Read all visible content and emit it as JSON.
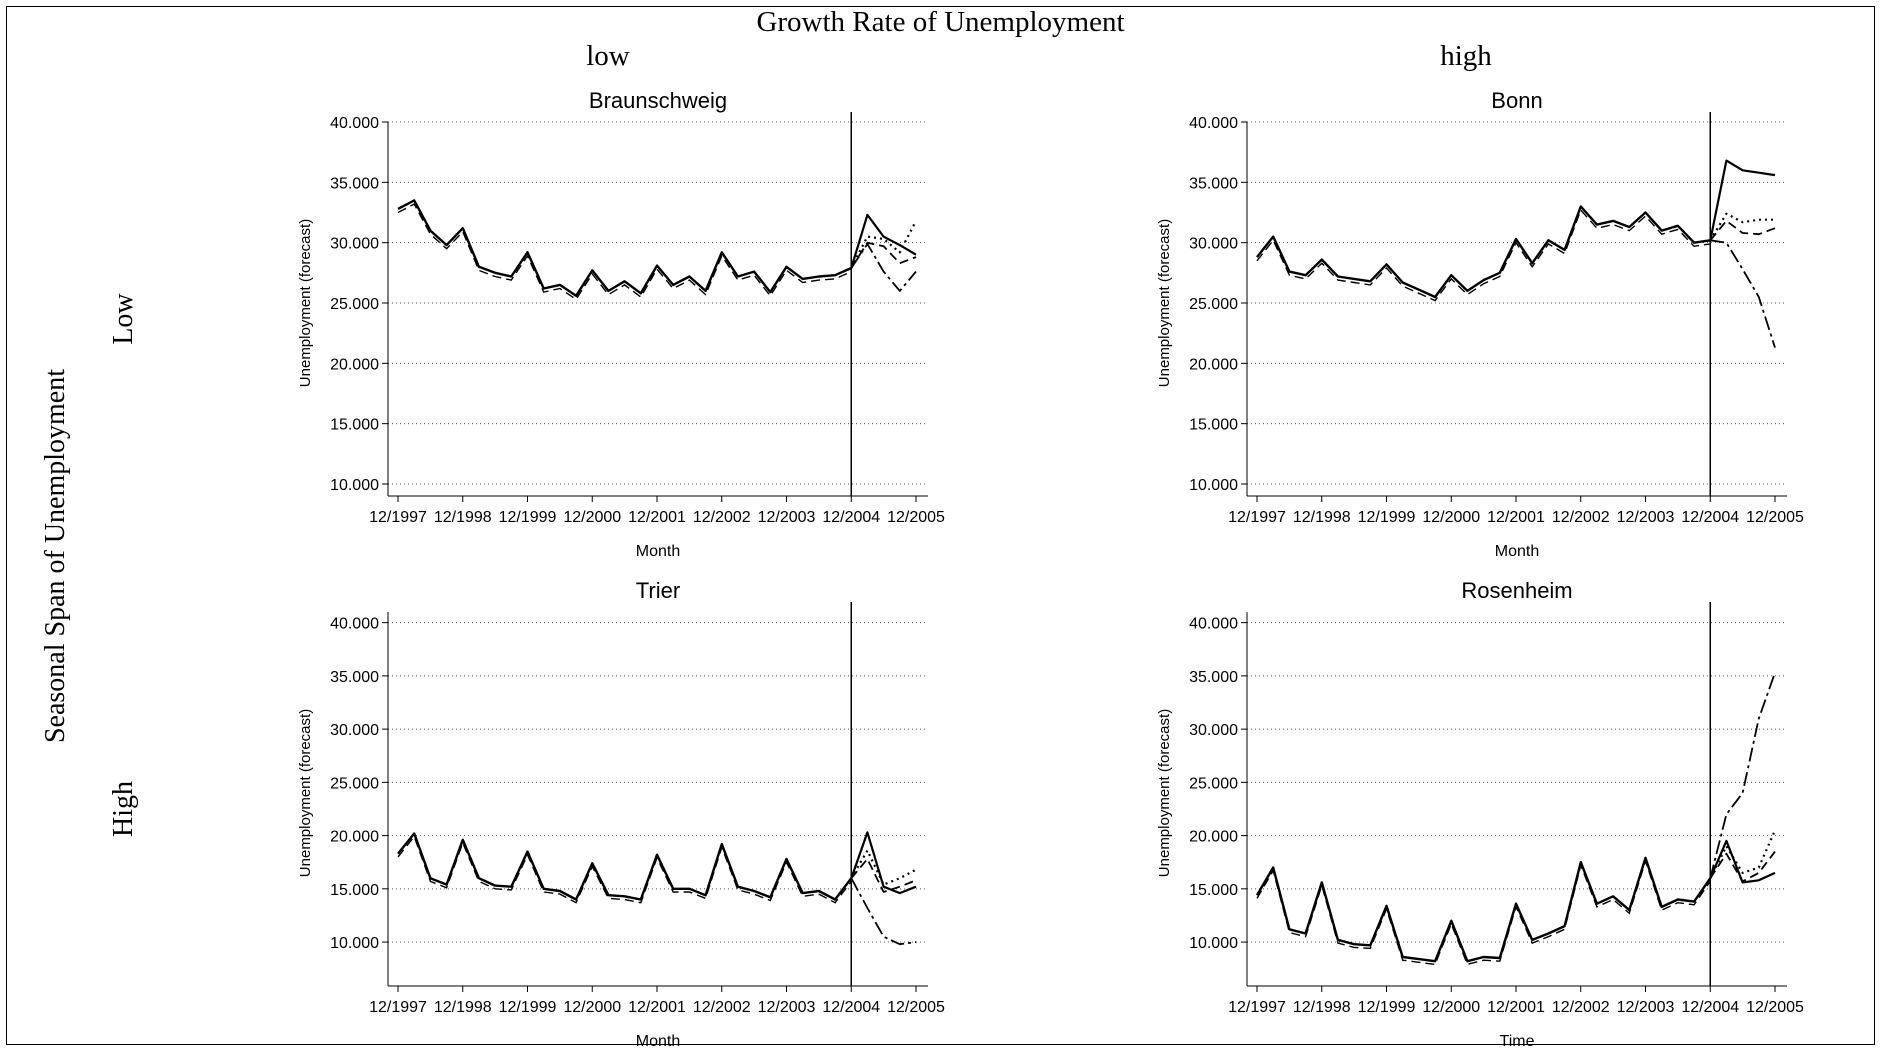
{
  "figure": {
    "title": "Growth Rate of Unemployment",
    "col_low": "low",
    "col_high": "high",
    "row_axis_title": "Seasonal Span of Unemployment",
    "row_low": "Low",
    "row_high": "High"
  },
  "chart_data": [
    {
      "type": "line",
      "title": "Braunschweig",
      "xlabel": "Month",
      "ylabel": "Unemployment (forecast)",
      "xticks": [
        "12/1997",
        "12/1998",
        "12/1999",
        "12/2000",
        "12/2001",
        "12/2002",
        "12/2003",
        "12/2004",
        "12/2005"
      ],
      "yticks": [
        "10.000",
        "15.000",
        "20.000",
        "25.000",
        "30.000",
        "35.000",
        "40.000"
      ],
      "ylim": [
        10000,
        40000
      ],
      "grid": true,
      "forecast_start": "12/2004",
      "history": {
        "months": [
          "12/1997",
          "03/1998",
          "06/1998",
          "09/1998",
          "12/1998",
          "03/1999",
          "06/1999",
          "09/1999",
          "12/1999",
          "03/2000",
          "06/2000",
          "09/2000",
          "12/2000",
          "03/2001",
          "06/2001",
          "09/2001",
          "12/2001",
          "03/2002",
          "06/2002",
          "09/2002",
          "12/2002",
          "03/2003",
          "06/2003",
          "09/2003",
          "12/2003",
          "03/2004",
          "06/2004",
          "09/2004",
          "12/2004"
        ],
        "values": [
          32800,
          33500,
          31000,
          29800,
          31200,
          28000,
          27500,
          27200,
          29200,
          26200,
          26500,
          25600,
          27700,
          26000,
          26800,
          25800,
          28100,
          26500,
          27200,
          26000,
          29200,
          27200,
          27600,
          25900,
          28000,
          27000,
          27200,
          27300,
          27900
        ]
      },
      "forecasts": {
        "months": [
          "12/2004",
          "03/2005",
          "06/2005",
          "09/2005",
          "12/2005"
        ],
        "series": [
          {
            "style": "solid",
            "values": [
              27900,
              32300,
              30500,
              29800,
              29000
            ]
          },
          {
            "style": "dotted",
            "values": [
              27900,
              30500,
              30300,
              29200,
              31800
            ]
          },
          {
            "style": "dashed",
            "values": [
              27900,
              30000,
              29700,
              28300,
              28800
            ]
          },
          {
            "style": "dashdot",
            "values": [
              27900,
              29900,
              27600,
              26000,
              27600
            ]
          }
        ]
      }
    },
    {
      "type": "line",
      "title": "Bonn",
      "xlabel": "Month",
      "ylabel": "Unemployment (forecast)",
      "xticks": [
        "12/1997",
        "12/1998",
        "12/1999",
        "12/2000",
        "12/2001",
        "12/2002",
        "12/2003",
        "12/2004",
        "12/2005"
      ],
      "yticks": [
        "10.000",
        "15.000",
        "20.000",
        "25.000",
        "30.000",
        "35.000",
        "40.000"
      ],
      "ylim": [
        10000,
        40000
      ],
      "grid": true,
      "forecast_start": "12/2004",
      "history": {
        "months": [
          "12/1997",
          "03/1998",
          "06/1998",
          "09/1998",
          "12/1998",
          "03/1999",
          "06/1999",
          "09/1999",
          "12/1999",
          "03/2000",
          "06/2000",
          "09/2000",
          "12/2000",
          "03/2001",
          "06/2001",
          "09/2001",
          "12/2001",
          "03/2002",
          "06/2002",
          "09/2002",
          "12/2002",
          "03/2003",
          "06/2003",
          "09/2003",
          "12/2003",
          "03/2004",
          "06/2004",
          "09/2004",
          "12/2004"
        ],
        "values": [
          28800,
          30500,
          27600,
          27300,
          28600,
          27200,
          27000,
          26800,
          28200,
          26700,
          26100,
          25500,
          27300,
          26000,
          26900,
          27500,
          30300,
          28300,
          30200,
          29400,
          33000,
          31500,
          31800,
          31300,
          32500,
          31000,
          31400,
          30000,
          30200
        ]
      },
      "forecasts": {
        "months": [
          "12/2004",
          "03/2005",
          "06/2005",
          "09/2005",
          "12/2005"
        ],
        "series": [
          {
            "style": "solid",
            "values": [
              30200,
              36800,
              36000,
              35800,
              35600
            ]
          },
          {
            "style": "dotted",
            "values": [
              30200,
              32400,
              31700,
              31900,
              31900
            ]
          },
          {
            "style": "dashed",
            "values": [
              30200,
              31800,
              30800,
              30700,
              31200
            ]
          },
          {
            "style": "dashdot",
            "values": [
              30200,
              30000,
              27800,
              25500,
              21300
            ]
          }
        ]
      }
    },
    {
      "type": "line",
      "title": "Trier",
      "xlabel": "Month",
      "ylabel": "Unemployment (forecast)",
      "xticks": [
        "12/1997",
        "12/1998",
        "12/1999",
        "12/2000",
        "12/2001",
        "12/2002",
        "12/2003",
        "12/2004",
        "12/2005"
      ],
      "yticks": [
        "10.000",
        "15.000",
        "20.000",
        "25.000",
        "30.000",
        "35.000",
        "40.000"
      ],
      "ylim": [
        7000,
        41000
      ],
      "grid": true,
      "forecast_start": "12/2004",
      "history": {
        "months": [
          "12/1997",
          "03/1998",
          "06/1998",
          "09/1998",
          "12/1998",
          "03/1999",
          "06/1999",
          "09/1999",
          "12/1999",
          "03/2000",
          "06/2000",
          "09/2000",
          "12/2000",
          "03/2001",
          "06/2001",
          "09/2001",
          "12/2001",
          "03/2002",
          "06/2002",
          "09/2002",
          "12/2002",
          "03/2003",
          "06/2003",
          "09/2003",
          "12/2003",
          "03/2004",
          "06/2004",
          "09/2004",
          "12/2004"
        ],
        "values": [
          18300,
          20200,
          16000,
          15400,
          19600,
          16000,
          15300,
          15200,
          18500,
          15000,
          14800,
          14000,
          17400,
          14400,
          14300,
          14000,
          18200,
          15000,
          15000,
          14400,
          19200,
          15200,
          14800,
          14200,
          17800,
          14600,
          14800,
          14000,
          16000
        ]
      },
      "forecasts": {
        "months": [
          "12/2004",
          "03/2005",
          "06/2005",
          "09/2005",
          "12/2005"
        ],
        "series": [
          {
            "style": "solid",
            "values": [
              16000,
              20300,
              15200,
              14600,
              15200
            ]
          },
          {
            "style": "dotted",
            "values": [
              16000,
              18600,
              15400,
              16000,
              16800
            ]
          },
          {
            "style": "dashed",
            "values": [
              16000,
              17800,
              14700,
              15200,
              15800
            ]
          },
          {
            "style": "dashdot",
            "values": [
              16000,
              13200,
              10500,
              9800,
              10000
            ]
          }
        ]
      }
    },
    {
      "type": "line",
      "title": "Rosenheim",
      "xlabel": "Time",
      "ylabel": "Unemployment (forecast)",
      "xticks": [
        "12/1997",
        "12/1998",
        "12/1999",
        "12/2000",
        "12/2001",
        "12/2002",
        "12/2003",
        "12/2004",
        "12/2005"
      ],
      "yticks": [
        "10.000",
        "15.000",
        "20.000",
        "25.000",
        "30.000",
        "35.000",
        "40.000"
      ],
      "ylim": [
        7000,
        41000
      ],
      "grid": true,
      "forecast_start": "12/2004",
      "history": {
        "months": [
          "12/1997",
          "03/1998",
          "06/1998",
          "09/1998",
          "12/1998",
          "03/1999",
          "06/1999",
          "09/1999",
          "12/1999",
          "03/2000",
          "06/2000",
          "09/2000",
          "12/2000",
          "03/2001",
          "06/2001",
          "09/2001",
          "12/2001",
          "03/2002",
          "06/2002",
          "09/2002",
          "12/2002",
          "03/2003",
          "06/2003",
          "09/2003",
          "12/2003",
          "03/2004",
          "06/2004",
          "09/2004",
          "12/2004"
        ],
        "values": [
          14400,
          17000,
          11200,
          10800,
          15600,
          10200,
          9800,
          9700,
          13400,
          8600,
          8400,
          8200,
          12000,
          8200,
          8600,
          8500,
          13600,
          10200,
          10800,
          11500,
          17500,
          13600,
          14300,
          13000,
          17900,
          13300,
          14000,
          13800,
          16000
        ]
      },
      "forecasts": {
        "months": [
          "12/2004",
          "03/2005",
          "06/2005",
          "09/2005",
          "12/2005"
        ],
        "series": [
          {
            "style": "solid",
            "values": [
              16000,
              19500,
              15600,
              15800,
              16500
            ]
          },
          {
            "style": "dotted",
            "values": [
              16000,
              19000,
              16500,
              17000,
              20500
            ]
          },
          {
            "style": "dashed",
            "values": [
              16000,
              18300,
              15700,
              16500,
              18500
            ]
          },
          {
            "style": "dashdot",
            "values": [
              16000,
              22000,
              24000,
              31000,
              35300
            ]
          }
        ]
      }
    }
  ]
}
